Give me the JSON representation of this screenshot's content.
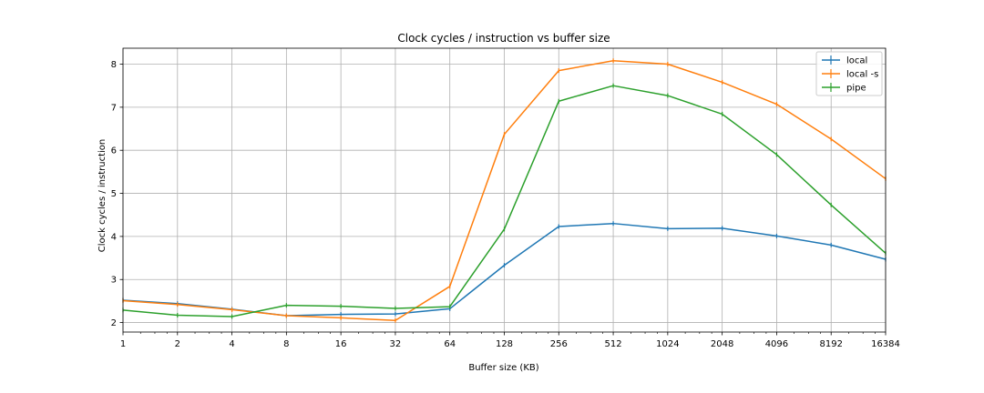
{
  "chart_data": {
    "type": "line",
    "title": "Clock cycles / instruction vs buffer size",
    "xlabel": "Buffer size (KB)",
    "ylabel": "Clock cycles / instruction",
    "x_scale": "log2",
    "xlim": [
      1,
      16384
    ],
    "ylim": [
      1.78,
      8.37
    ],
    "grid": true,
    "legend_position": "top-right",
    "categories": [
      "1",
      "2",
      "4",
      "8",
      "16",
      "32",
      "64",
      "128",
      "256",
      "512",
      "1024",
      "2048",
      "4096",
      "8192",
      "16384"
    ],
    "y_ticks": [
      "2",
      "3",
      "4",
      "5",
      "6",
      "7",
      "8"
    ],
    "x": [
      1,
      2,
      4,
      8,
      16,
      32,
      64,
      128,
      256,
      512,
      1024,
      2048,
      4096,
      8192,
      16384
    ],
    "series": [
      {
        "name": "local",
        "color": "#1f77b4",
        "values": [
          2.52,
          2.44,
          2.31,
          2.16,
          2.19,
          2.2,
          2.32,
          3.33,
          4.23,
          4.3,
          4.18,
          4.19,
          4.01,
          3.8,
          3.47
        ]
      },
      {
        "name": "local -s",
        "color": "#ff7f0e",
        "values": [
          2.51,
          2.42,
          2.3,
          2.16,
          2.11,
          2.05,
          2.84,
          6.37,
          7.85,
          8.08,
          8.0,
          7.58,
          7.07,
          6.26,
          5.34
        ]
      },
      {
        "name": "pipe",
        "color": "#2ca02c",
        "values": [
          2.29,
          2.17,
          2.14,
          2.4,
          2.38,
          2.33,
          2.37,
          4.17,
          7.14,
          7.5,
          7.27,
          6.84,
          5.9,
          4.73,
          3.61
        ]
      }
    ]
  }
}
